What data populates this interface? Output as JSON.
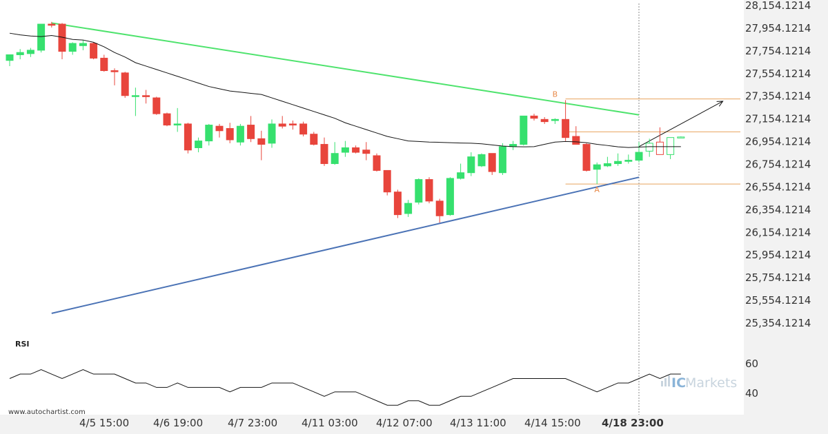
{
  "chart_data": {
    "type": "candlestick",
    "y_ticks": [
      "28,154.1214",
      "27,954.1214",
      "27,754.1214",
      "27,554.1214",
      "27,354.1214",
      "27,154.1214",
      "26,954.1214",
      "26,754.1214",
      "26,554.1214",
      "26,354.1214",
      "26,154.1214",
      "25,954.1214",
      "25,754.1214",
      "25,554.1214",
      "25,354.1214"
    ],
    "y_tick_values": [
      28154.1214,
      27954.1214,
      27754.1214,
      27554.1214,
      27354.1214,
      27154.1214,
      26954.1214,
      26754.1214,
      26554.1214,
      26354.1214,
      26154.1214,
      25954.1214,
      25754.1214,
      25554.1214,
      25354.1214
    ],
    "x_ticks": [
      "4/5 15:00",
      "4/6 19:00",
      "4/7 23:00",
      "4/11 03:00",
      "4/12 07:00",
      "4/13 11:00",
      "4/14 15:00",
      "4/18 23:00"
    ],
    "highlight_x_tick": "4/18 23:00",
    "candles": [
      [
        27670,
        27720,
        27620,
        27720
      ],
      [
        27720,
        27770,
        27680,
        27740
      ],
      [
        27730,
        27780,
        27700,
        27760
      ],
      [
        27760,
        27990,
        27740,
        27990
      ],
      [
        27990,
        28010,
        27960,
        27980
      ],
      [
        27990,
        28000,
        27680,
        27750
      ],
      [
        27750,
        27830,
        27720,
        27820
      ],
      [
        27800,
        27850,
        27760,
        27820
      ],
      [
        27820,
        27830,
        27680,
        27690
      ],
      [
        27690,
        27720,
        27570,
        27580
      ],
      [
        27580,
        27600,
        27450,
        27570
      ],
      [
        27560,
        27570,
        27340,
        27360
      ],
      [
        27360,
        27430,
        27180,
        27360
      ],
      [
        27360,
        27410,
        27290,
        27350
      ],
      [
        27340,
        27350,
        27190,
        27200
      ],
      [
        27200,
        27210,
        27090,
        27100
      ],
      [
        27100,
        27250,
        27040,
        27110
      ],
      [
        27110,
        27120,
        26850,
        26880
      ],
      [
        26900,
        26990,
        26860,
        26960
      ],
      [
        26960,
        27110,
        26920,
        27100
      ],
      [
        27090,
        27110,
        26990,
        27050
      ],
      [
        27070,
        27120,
        26940,
        26970
      ],
      [
        26950,
        27110,
        26920,
        27090
      ],
      [
        27100,
        27180,
        26950,
        26980
      ],
      [
        26980,
        27050,
        26790,
        26930
      ],
      [
        26940,
        27150,
        26900,
        27110
      ],
      [
        27110,
        27180,
        27070,
        27090
      ],
      [
        27110,
        27140,
        27060,
        27100
      ],
      [
        27110,
        27130,
        27000,
        27020
      ],
      [
        27020,
        27040,
        26920,
        26930
      ],
      [
        26930,
        26990,
        26740,
        26760
      ],
      [
        26760,
        26950,
        26750,
        26850
      ],
      [
        26860,
        26960,
        26820,
        26900
      ],
      [
        26900,
        26920,
        26850,
        26860
      ],
      [
        26880,
        26950,
        26790,
        26850
      ],
      [
        26830,
        26850,
        26690,
        26700
      ],
      [
        26700,
        26700,
        26480,
        26510
      ],
      [
        26510,
        26530,
        26280,
        26310
      ],
      [
        26320,
        26440,
        26290,
        26410
      ],
      [
        26420,
        26630,
        26400,
        26620
      ],
      [
        26620,
        26640,
        26410,
        26430
      ],
      [
        26430,
        26450,
        26240,
        26300
      ],
      [
        26310,
        26640,
        26300,
        26630
      ],
      [
        26630,
        26760,
        26620,
        26680
      ],
      [
        26680,
        26860,
        26650,
        26820
      ],
      [
        26740,
        26850,
        26730,
        26840
      ],
      [
        26850,
        26850,
        26660,
        26690
      ],
      [
        26680,
        26940,
        26660,
        26910
      ],
      [
        26910,
        26960,
        26880,
        26930
      ],
      [
        26930,
        27180,
        26920,
        27180
      ],
      [
        27180,
        27200,
        27140,
        27160
      ],
      [
        27150,
        27170,
        27110,
        27130
      ],
      [
        27140,
        27160,
        27110,
        27150
      ],
      [
        27150,
        27320,
        26960,
        26990
      ],
      [
        27000,
        27090,
        26940,
        26930
      ],
      [
        26930,
        26940,
        26690,
        26700
      ],
      [
        26710,
        26770,
        26580,
        26750
      ],
      [
        26740,
        26820,
        26730,
        26760
      ],
      [
        26760,
        26850,
        26740,
        26780
      ],
      [
        26780,
        26840,
        26760,
        26790
      ],
      [
        26790,
        26950,
        26770,
        26860
      ],
      [
        26870,
        26980,
        26820,
        26940
      ],
      [
        26950,
        27080,
        26840,
        26840
      ],
      [
        26840,
        26990,
        26800,
        26990
      ],
      [
        26990,
        27000,
        26990,
        26995
      ]
    ],
    "forecast_candle_indices": [
      61,
      62,
      63,
      64
    ],
    "moving_average": [
      27910,
      27895,
      27885,
      27880,
      27890,
      27875,
      27855,
      27850,
      27830,
      27790,
      27740,
      27700,
      27650,
      27620,
      27590,
      27560,
      27530,
      27500,
      27470,
      27440,
      27420,
      27400,
      27390,
      27380,
      27370,
      27340,
      27310,
      27280,
      27250,
      27220,
      27190,
      27160,
      27120,
      27090,
      27060,
      27030,
      27000,
      26980,
      26960,
      26955,
      26950,
      26948,
      26945,
      26942,
      26940,
      26935,
      26925,
      26915,
      26910,
      26908,
      26910,
      26930,
      26950,
      26955,
      26952,
      26945,
      26930,
      26920,
      26908,
      26902,
      26906,
      26910,
      26910,
      26910,
      26910
    ],
    "resistance_line": {
      "from": [
        4,
        28000
      ],
      "to": [
        60,
        27190
      ]
    },
    "support_line": {
      "from": [
        4,
        25440
      ],
      "to": [
        60,
        26640
      ]
    },
    "projection_arrow": {
      "from": [
        60,
        26910
      ],
      "to": [
        68,
        27310
      ]
    },
    "levels": [
      27330,
      27040,
      26580
    ],
    "markers": [
      {
        "label": "B",
        "x": 52,
        "y": 27330
      },
      {
        "label": "A",
        "x": 56,
        "y": 26580
      }
    ],
    "current_index": 60,
    "rsi": {
      "label": "RSI",
      "ticks": [
        "60",
        "40"
      ],
      "tick_values": [
        60,
        40
      ],
      "values": [
        50,
        53,
        53,
        56,
        53,
        50,
        53,
        56,
        53,
        53,
        53,
        50,
        47,
        47,
        44,
        44,
        47,
        44,
        44,
        44,
        44,
        41,
        44,
        44,
        44,
        47,
        47,
        47,
        44,
        41,
        38,
        41,
        41,
        41,
        38,
        35,
        32,
        32,
        35,
        35,
        32,
        32,
        35,
        38,
        38,
        41,
        44,
        47,
        50,
        50,
        50,
        50,
        50,
        50,
        47,
        44,
        41,
        44,
        47,
        47,
        50,
        53,
        50,
        53,
        53
      ]
    }
  },
  "footer": {
    "watermark": "www.autochartist.com",
    "brand_prefix": "IC",
    "brand_name": "Markets"
  },
  "colors": {
    "bull": "#36e06e",
    "bear": "#e8453c",
    "resistance": "#4ee36d",
    "support": "#4a72b5",
    "level": "#e8a25c",
    "marker": "#e88a4a",
    "ma": "#111111",
    "brand_prefix": "#8ab4d8",
    "brand_name": "#c8d4de"
  }
}
